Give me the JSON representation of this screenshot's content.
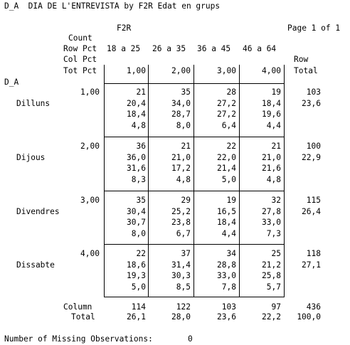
{
  "title": "D_A  DIA DE L'ENTREVISTA by F2R Edat en grups",
  "col_var": "F2R",
  "page": "Page 1 of 1",
  "stat_labels": [
    "Count",
    "Row Pct",
    "Col Pct",
    "Tot Pct"
  ],
  "row_var": "D_A",
  "col_labels": [
    "18 a 25",
    "26 a 35",
    "36 a 45",
    "46 a 64"
  ],
  "col_codes": [
    "1,00",
    "2,00",
    "3,00",
    "4,00"
  ],
  "row_total_header": [
    "Row",
    "Total"
  ],
  "rows": [
    {
      "code": "1,00",
      "label": "Dilluns",
      "cells": [
        [
          "21",
          "20,4",
          "18,4",
          "4,8"
        ],
        [
          "35",
          "34,0",
          "28,7",
          "8,0"
        ],
        [
          "28",
          "27,2",
          "27,2",
          "6,4"
        ],
        [
          "19",
          "18,4",
          "19,6",
          "4,4"
        ]
      ],
      "total": [
        "103",
        "23,6"
      ]
    },
    {
      "code": "2,00",
      "label": "Dijous",
      "cells": [
        [
          "36",
          "36,0",
          "31,6",
          "8,3"
        ],
        [
          "21",
          "21,0",
          "17,2",
          "4,8"
        ],
        [
          "22",
          "22,0",
          "21,4",
          "5,0"
        ],
        [
          "21",
          "21,0",
          "21,6",
          "4,8"
        ]
      ],
      "total": [
        "100",
        "22,9"
      ]
    },
    {
      "code": "3,00",
      "label": "Divendres",
      "cells": [
        [
          "35",
          "30,4",
          "30,7",
          "8,0"
        ],
        [
          "29",
          "25,2",
          "23,8",
          "6,7"
        ],
        [
          "19",
          "16,5",
          "18,4",
          "4,4"
        ],
        [
          "32",
          "27,8",
          "33,0",
          "7,3"
        ]
      ],
      "total": [
        "115",
        "26,4"
      ]
    },
    {
      "code": "4,00",
      "label": "Dissabte",
      "cells": [
        [
          "22",
          "18,6",
          "19,3",
          "5,0"
        ],
        [
          "37",
          "31,4",
          "30,3",
          "8,5"
        ],
        [
          "34",
          "28,8",
          "33,0",
          "7,8"
        ],
        [
          "25",
          "21,2",
          "25,8",
          "5,7"
        ]
      ],
      "total": [
        "118",
        "27,1"
      ]
    }
  ],
  "column_total_label": [
    "Column",
    "Total"
  ],
  "column_totals": [
    [
      "114",
      "26,1"
    ],
    [
      "122",
      "28,0"
    ],
    [
      "103",
      "23,6"
    ],
    [
      "97",
      "22,2"
    ]
  ],
  "grand_total": [
    "436",
    "100,0"
  ],
  "missing_label": "Number of Missing Observations:",
  "missing_value": "0"
}
